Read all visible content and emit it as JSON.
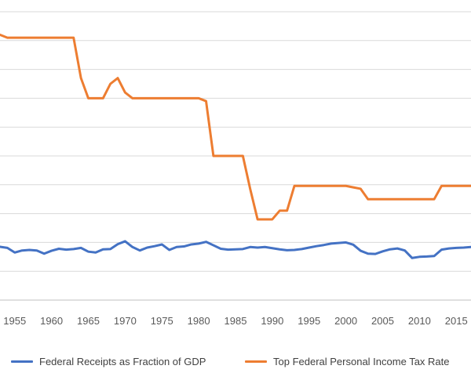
{
  "chart_data": {
    "type": "line",
    "title": "",
    "xlabel": "",
    "ylabel": "",
    "xlim": [
      1953,
      2017
    ],
    "ylim": [
      0,
      1
    ],
    "grid": true,
    "legend_position": "bottom",
    "x_ticks": [
      "1955",
      "1960",
      "1965",
      "1970",
      "1975",
      "1980",
      "1985",
      "1990",
      "1995",
      "2000",
      "2005",
      "2010",
      "2015"
    ],
    "colors": {
      "receipts": "#4472C4",
      "tax_rate": "#ED7D31",
      "grid": "#d9d9d9"
    },
    "series": [
      {
        "name": "Federal Receipts as Fraction of GDP",
        "x": [
          1953,
          1954,
          1955,
          1956,
          1957,
          1958,
          1959,
          1960,
          1961,
          1962,
          1963,
          1964,
          1965,
          1966,
          1967,
          1968,
          1969,
          1970,
          1971,
          1972,
          1973,
          1974,
          1975,
          1976,
          1977,
          1978,
          1979,
          1980,
          1981,
          1982,
          1983,
          1984,
          1985,
          1986,
          1987,
          1988,
          1989,
          1990,
          1991,
          1992,
          1993,
          1994,
          1995,
          1996,
          1997,
          1998,
          1999,
          2000,
          2001,
          2002,
          2003,
          2004,
          2005,
          2006,
          2007,
          2008,
          2009,
          2010,
          2011,
          2012,
          2013,
          2014,
          2015,
          2016,
          2017
        ],
        "values": [
          0.185,
          0.181,
          0.165,
          0.172,
          0.174,
          0.172,
          0.161,
          0.171,
          0.178,
          0.175,
          0.177,
          0.181,
          0.168,
          0.165,
          0.176,
          0.177,
          0.194,
          0.204,
          0.184,
          0.172,
          0.182,
          0.187,
          0.193,
          0.174,
          0.184,
          0.186,
          0.193,
          0.196,
          0.202,
          0.19,
          0.178,
          0.175,
          0.176,
          0.177,
          0.184,
          0.182,
          0.184,
          0.18,
          0.176,
          0.173,
          0.174,
          0.177,
          0.182,
          0.187,
          0.191,
          0.196,
          0.198,
          0.2,
          0.192,
          0.171,
          0.161,
          0.16,
          0.169,
          0.176,
          0.179,
          0.172,
          0.146,
          0.15,
          0.151,
          0.153,
          0.175,
          0.179,
          0.181,
          0.182,
          0.184
        ]
      },
      {
        "name": "Top Federal Personal Income Tax Rate",
        "x": [
          1953,
          1954,
          1955,
          1956,
          1957,
          1958,
          1959,
          1960,
          1961,
          1962,
          1963,
          1964,
          1965,
          1966,
          1967,
          1968,
          1969,
          1970,
          1971,
          1972,
          1973,
          1974,
          1975,
          1976,
          1977,
          1978,
          1979,
          1980,
          1981,
          1982,
          1983,
          1984,
          1985,
          1986,
          1987,
          1988,
          1989,
          1990,
          1991,
          1992,
          1993,
          1994,
          1995,
          1996,
          1997,
          1998,
          1999,
          2000,
          2001,
          2002,
          2003,
          2004,
          2005,
          2006,
          2007,
          2008,
          2009,
          2010,
          2011,
          2012,
          2013,
          2014,
          2015,
          2016,
          2017
        ],
        "values": [
          0.92,
          0.91,
          0.91,
          0.91,
          0.91,
          0.91,
          0.91,
          0.91,
          0.91,
          0.91,
          0.91,
          0.77,
          0.7,
          0.7,
          0.7,
          0.75,
          0.77,
          0.72,
          0.7,
          0.7,
          0.7,
          0.7,
          0.7,
          0.7,
          0.7,
          0.7,
          0.7,
          0.7,
          0.69,
          0.5,
          0.5,
          0.5,
          0.5,
          0.5,
          0.385,
          0.28,
          0.28,
          0.28,
          0.31,
          0.31,
          0.396,
          0.396,
          0.396,
          0.396,
          0.396,
          0.396,
          0.396,
          0.396,
          0.391,
          0.386,
          0.35,
          0.35,
          0.35,
          0.35,
          0.35,
          0.35,
          0.35,
          0.35,
          0.35,
          0.35,
          0.396,
          0.396,
          0.396,
          0.396,
          0.396
        ]
      }
    ]
  }
}
